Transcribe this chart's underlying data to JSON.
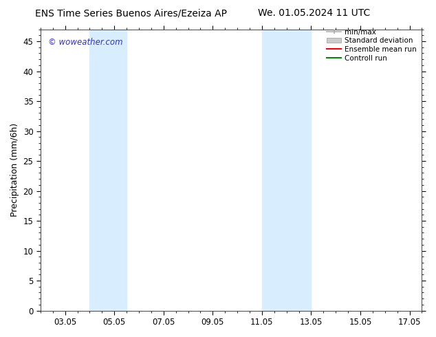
{
  "title_left": "ENS Time Series Buenos Aires/Ezeiza AP",
  "title_right": "We. 01.05.2024 11 UTC",
  "ylabel": "Precipitation (mm/6h)",
  "xlabel_ticks": [
    "03.05",
    "05.05",
    "07.05",
    "09.05",
    "11.05",
    "13.05",
    "15.05",
    "17.05"
  ],
  "xtick_positions": [
    3,
    5,
    7,
    9,
    11,
    13,
    15,
    17
  ],
  "xlim": [
    2.0,
    17.5
  ],
  "ylim": [
    0,
    47
  ],
  "yticks": [
    0,
    5,
    10,
    15,
    20,
    25,
    30,
    35,
    40,
    45
  ],
  "background_color": "#ffffff",
  "plot_bg_color": "#ffffff",
  "watermark_text": "© woweather.com",
  "watermark_color": "#3333bb",
  "shaded_regions": [
    {
      "x_start": 4.0,
      "x_end": 5.5,
      "color": "#d8eeff"
    },
    {
      "x_start": 11.0,
      "x_end": 13.0,
      "color": "#d8eeff"
    }
  ],
  "legend_entries": [
    {
      "label": "min/max",
      "color": "#aaaaaa",
      "lw": 1.2,
      "style": "minmax"
    },
    {
      "label": "Standard deviation",
      "color": "#cccccc",
      "lw": 5,
      "style": "filled"
    },
    {
      "label": "Ensemble mean run",
      "color": "#ff0000",
      "lw": 1.5,
      "style": "line"
    },
    {
      "label": "Controll run",
      "color": "#008800",
      "lw": 1.5,
      "style": "line"
    }
  ],
  "title_fontsize": 10,
  "tick_label_fontsize": 8.5,
  "ylabel_fontsize": 9,
  "legend_fontsize": 7.5
}
